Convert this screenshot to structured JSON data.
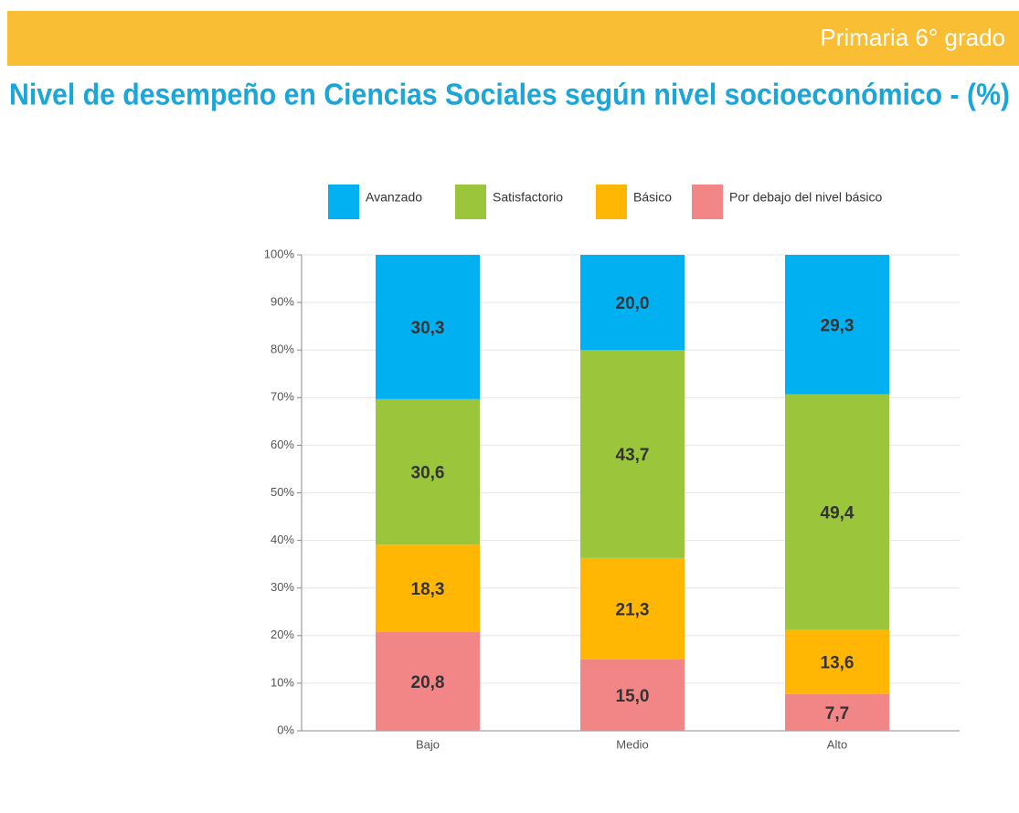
{
  "header": {
    "title": "Primaria 6° grado"
  },
  "chart_data": {
    "type": "stacked_bar",
    "title": "Nivel de desempeño en Ciencias Sociales según nivel socioeconómico - (%)",
    "categories": [
      "Bajo",
      "Medio",
      "Alto"
    ],
    "series": [
      {
        "name": "Avanzado",
        "color": "#00b0f0",
        "values": [
          30.3,
          20.0,
          29.3
        ],
        "value_labels": [
          "30,3",
          "20,0",
          "29,3"
        ]
      },
      {
        "name": "Satisfactorio",
        "color": "#9bc63b",
        "values": [
          30.6,
          43.7,
          49.4
        ],
        "value_labels": [
          "30,6",
          "43,7",
          "49,4"
        ]
      },
      {
        "name": "Básico",
        "color": "#ffb703",
        "values": [
          18.3,
          21.3,
          13.6
        ],
        "value_labels": [
          "18,3",
          "21,3",
          "13,6"
        ]
      },
      {
        "name": "Por debajo del nivel básico",
        "color": "#f28585",
        "values": [
          20.8,
          15.0,
          7.7
        ],
        "value_labels": [
          "20,8",
          "15,0",
          "7,7"
        ]
      }
    ],
    "ylim": [
      0,
      100
    ],
    "yticks": [
      {
        "value": 0,
        "label": "0%"
      },
      {
        "value": 10,
        "label": "10%"
      },
      {
        "value": 20,
        "label": "20%"
      },
      {
        "value": 30,
        "label": "30%"
      },
      {
        "value": 40,
        "label": "40%"
      },
      {
        "value": 50,
        "label": "50%"
      },
      {
        "value": 60,
        "label": "60%"
      },
      {
        "value": 70,
        "label": "70%"
      },
      {
        "value": 80,
        "label": "80%"
      },
      {
        "value": 90,
        "label": "90%"
      },
      {
        "value": 100,
        "label": "100%"
      }
    ],
    "grid": true,
    "legend": "top"
  }
}
